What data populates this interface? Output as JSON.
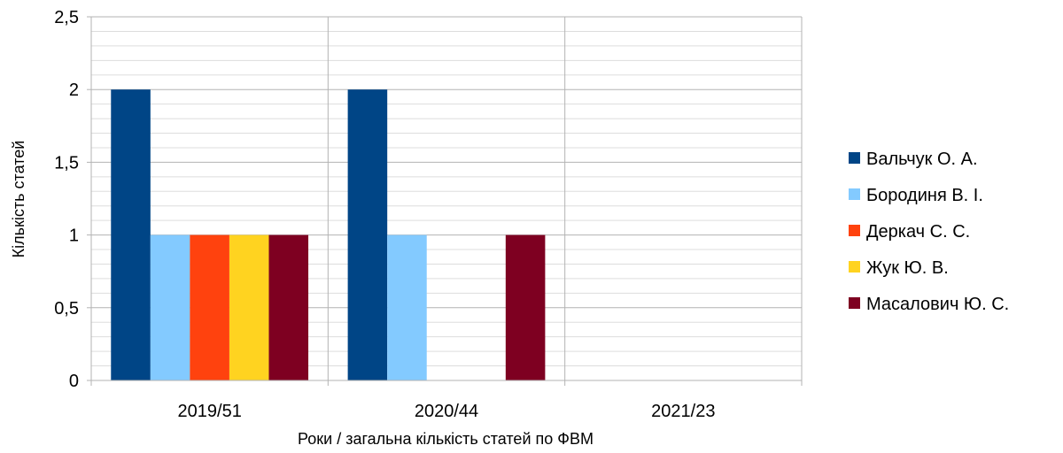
{
  "chart_data": {
    "type": "bar",
    "title": "",
    "xlabel": "Роки / загальна кількість статей по ФВМ",
    "ylabel": "Кількість статей",
    "categories": [
      "2019/51",
      "2020/44",
      "2021/23"
    ],
    "ylim": [
      0,
      2.5
    ],
    "yticks": [
      "0",
      "0,5",
      "1",
      "1,5",
      "2",
      "2,5"
    ],
    "grid": true,
    "legend_position": "right",
    "series": [
      {
        "name": "Вальчук О. А.",
        "color": "#004586",
        "values": [
          2,
          2,
          0
        ]
      },
      {
        "name": "Бородиня В. І.",
        "color": "#83caff",
        "values": [
          1,
          1,
          0
        ]
      },
      {
        "name": "Деркач С. С.",
        "color": "#ff420e",
        "values": [
          1,
          0,
          0
        ]
      },
      {
        "name": "Жук Ю. В.",
        "color": "#ffd320",
        "values": [
          1,
          0,
          0
        ]
      },
      {
        "name": "Масалович Ю. С.",
        "color": "#7e0021",
        "values": [
          1,
          1,
          0
        ]
      }
    ]
  }
}
